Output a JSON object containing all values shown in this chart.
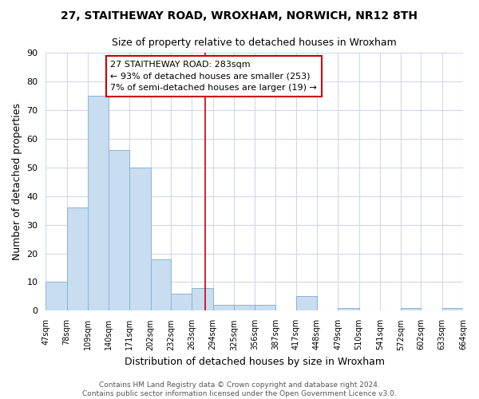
{
  "title": "27, STAITHEWAY ROAD, WROXHAM, NORWICH, NR12 8TH",
  "subtitle": "Size of property relative to detached houses in Wroxham",
  "xlabel": "Distribution of detached houses by size in Wroxham",
  "ylabel": "Number of detached properties",
  "bin_edges": [
    47,
    78,
    109,
    140,
    171,
    202,
    232,
    263,
    294,
    325,
    356,
    387,
    417,
    448,
    479,
    510,
    541,
    572,
    602,
    633,
    664
  ],
  "bin_counts": [
    10,
    36,
    75,
    56,
    50,
    18,
    6,
    8,
    2,
    2,
    2,
    0,
    5,
    0,
    1,
    0,
    0,
    1,
    0,
    1
  ],
  "bar_color": "#c8ddf0",
  "bar_edge_color": "#8ab4d4",
  "reference_line_x": 283,
  "reference_line_color": "#cc0000",
  "ylim": [
    0,
    90
  ],
  "yticks": [
    0,
    10,
    20,
    30,
    40,
    50,
    60,
    70,
    80,
    90
  ],
  "annotation_lines": [
    "27 STAITHEWAY ROAD: 283sqm",
    "← 93% of detached houses are smaller (253)",
    "7% of semi-detached houses are larger (19) →"
  ],
  "footer_line1": "Contains HM Land Registry data © Crown copyright and database right 2024.",
  "footer_line2": "Contains public sector information licensed under the Open Government Licence v3.0.",
  "tick_labels": [
    "47sqm",
    "78sqm",
    "109sqm",
    "140sqm",
    "171sqm",
    "202sqm",
    "232sqm",
    "263sqm",
    "294sqm",
    "325sqm",
    "356sqm",
    "387sqm",
    "417sqm",
    "448sqm",
    "479sqm",
    "510sqm",
    "541sqm",
    "572sqm",
    "602sqm",
    "633sqm",
    "664sqm"
  ],
  "background_color": "#ffffff",
  "grid_color": "#d0d8e8"
}
